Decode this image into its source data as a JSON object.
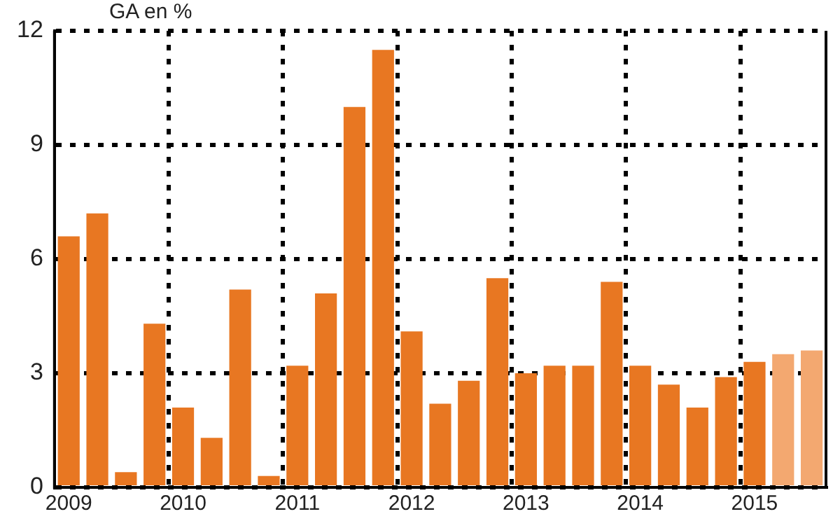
{
  "chart_data": {
    "type": "bar",
    "ylabel": "GA en %",
    "categories": [
      "2009",
      null,
      null,
      null,
      "2010",
      null,
      null,
      null,
      "2011",
      null,
      null,
      null,
      "2012",
      null,
      null,
      null,
      "2013",
      null,
      null,
      null,
      "2014",
      null,
      null,
      null,
      "2015",
      null,
      null
    ],
    "values": [
      6.6,
      7.2,
      0.4,
      4.3,
      2.1,
      1.3,
      5.2,
      0.3,
      3.2,
      5.1,
      10.0,
      11.5,
      4.1,
      2.2,
      2.8,
      5.5,
      3.0,
      3.2,
      3.2,
      5.4,
      3.2,
      2.7,
      2.1,
      2.9,
      3.3,
      3.5,
      3.6
    ],
    "colors": [
      "#e87722",
      "#e87722",
      "#e87722",
      "#e87722",
      "#e87722",
      "#e87722",
      "#e87722",
      "#e87722",
      "#e87722",
      "#e87722",
      "#e87722",
      "#e87722",
      "#e87722",
      "#e87722",
      "#e87722",
      "#e87722",
      "#e87722",
      "#e87722",
      "#e87722",
      "#e87722",
      "#e87722",
      "#e87722",
      "#e87722",
      "#e87722",
      "#e87722",
      "#f3a870",
      "#f3a870"
    ],
    "ylim": [
      0,
      12
    ],
    "yticks": [
      0,
      3,
      6,
      9,
      12
    ],
    "grid": true,
    "legend": false
  }
}
